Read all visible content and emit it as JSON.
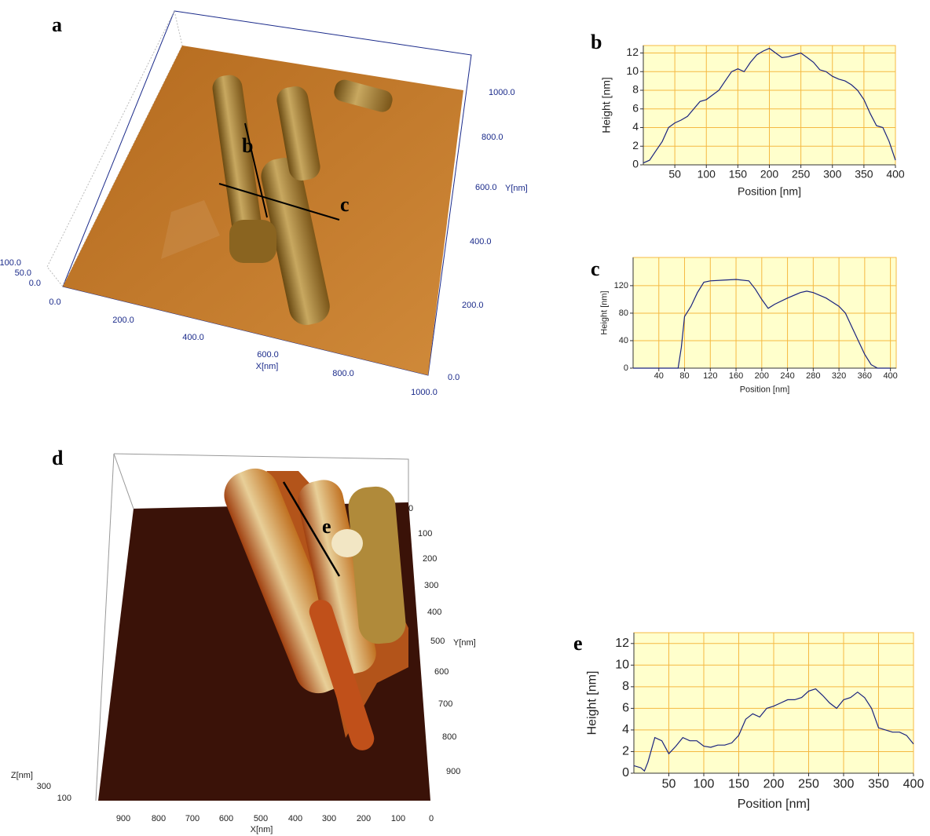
{
  "images": [
    {
      "label": "a",
      "line_labels": [
        "b",
        "c"
      ],
      "x_axis": "X[nm]",
      "y_axis": "Y[nm]",
      "x_ticks": [
        "0.0",
        "200.0",
        "400.0",
        "600.0",
        "800.0",
        "1000.0"
      ],
      "y_ticks": [
        "0.0",
        "200.0",
        "400.0",
        "600.0",
        "800.0",
        "1000.0"
      ],
      "z_ticks": [
        "100.0",
        "50.0",
        "0.0"
      ]
    },
    {
      "label": "d",
      "line_labels": [
        "e"
      ],
      "x_axis": "X[nm]",
      "y_axis": "Y[nm]",
      "z_axis": "Z[nm]",
      "x_ticks": [
        900,
        800,
        700,
        600,
        500,
        400,
        300,
        200,
        100,
        0
      ],
      "y_ticks": [
        0,
        100,
        200,
        300,
        400,
        500,
        600,
        700,
        800,
        900
      ],
      "z_ticks": [
        300,
        100
      ]
    }
  ],
  "chart_data": [
    {
      "type": "line",
      "label": "b",
      "xlabel": "Position [nm]",
      "ylabel": "Height [nm]",
      "x": [
        0,
        10,
        20,
        30,
        40,
        50,
        60,
        70,
        80,
        90,
        100,
        110,
        120,
        130,
        140,
        150,
        160,
        170,
        180,
        190,
        200,
        210,
        220,
        230,
        240,
        250,
        260,
        270,
        280,
        290,
        300,
        310,
        320,
        330,
        340,
        350,
        360,
        370,
        380,
        390,
        400
      ],
      "series": [
        {
          "color": "#1a237e",
          "values": [
            0.2,
            0.5,
            1.5,
            2.5,
            4,
            4.5,
            4.8,
            5.2,
            6,
            6.8,
            7,
            7.5,
            8,
            9,
            10,
            10.3,
            10,
            11,
            11.8,
            12.2,
            12.5,
            12,
            11.5,
            11.6,
            11.8,
            12,
            11.5,
            11,
            10.2,
            10,
            9.5,
            9.2,
            9,
            8.6,
            8,
            7,
            5.5,
            4.2,
            4,
            2.5,
            0.5
          ]
        }
      ],
      "xlim": [
        0,
        400
      ],
      "ylim": [
        0,
        12.8
      ],
      "xticks": [
        50,
        100,
        150,
        200,
        250,
        300,
        350,
        400
      ],
      "yticks": [
        0,
        2,
        4,
        6,
        8,
        10,
        12
      ],
      "grid": true,
      "plot_color": "#ffffcc",
      "grid_color": "#f5b942"
    },
    {
      "type": "line",
      "label": "c",
      "xlabel": "Position [nm]",
      "ylabel": "Height [nm]",
      "x": [
        0,
        20,
        40,
        60,
        70,
        75,
        80,
        90,
        100,
        110,
        120,
        140,
        160,
        180,
        190,
        200,
        210,
        220,
        240,
        260,
        270,
        280,
        300,
        320,
        330,
        340,
        350,
        360,
        370,
        380,
        400
      ],
      "series": [
        {
          "color": "#1a237e",
          "values": [
            0,
            0,
            0,
            0,
            0,
            30,
            75,
            90,
            110,
            125,
            127,
            128,
            129,
            127,
            115,
            100,
            87,
            93,
            102,
            110,
            112,
            110,
            102,
            90,
            80,
            60,
            40,
            20,
            5,
            0,
            0
          ]
        }
      ],
      "xlim": [
        0,
        409
      ],
      "ylim": [
        0,
        161
      ],
      "xticks": [
        40,
        80,
        120,
        160,
        200,
        240,
        280,
        320,
        360,
        400
      ],
      "yticks": [
        0,
        40,
        80,
        120
      ],
      "grid": true,
      "plot_color": "#ffffcc",
      "grid_color": "#f5b942"
    },
    {
      "type": "line",
      "label": "e",
      "xlabel": "Position [nm]",
      "ylabel": "Height [nm]",
      "x": [
        0,
        10,
        15,
        20,
        30,
        40,
        50,
        60,
        70,
        80,
        90,
        100,
        110,
        120,
        130,
        140,
        150,
        160,
        170,
        180,
        190,
        200,
        210,
        220,
        230,
        240,
        250,
        260,
        270,
        280,
        290,
        300,
        310,
        320,
        330,
        340,
        350,
        360,
        370,
        380,
        390,
        400
      ],
      "series": [
        {
          "color": "#1a237e",
          "values": [
            0.7,
            0.5,
            0.2,
            1,
            3.3,
            3,
            1.8,
            2.5,
            3.3,
            3,
            3,
            2.5,
            2.4,
            2.6,
            2.6,
            2.8,
            3.5,
            5,
            5.5,
            5.2,
            6,
            6.2,
            6.5,
            6.8,
            6.8,
            7,
            7.6,
            7.8,
            7.2,
            6.5,
            6,
            6.8,
            7,
            7.5,
            7,
            6,
            4.2,
            4,
            3.8,
            3.8,
            3.5,
            2.7
          ]
        }
      ],
      "xlim": [
        0,
        400
      ],
      "ylim": [
        0,
        13
      ],
      "xticks": [
        50,
        100,
        150,
        200,
        250,
        300,
        350,
        400
      ],
      "yticks": [
        0,
        2,
        4,
        6,
        8,
        10,
        12
      ],
      "grid": true,
      "plot_color": "#ffffcc",
      "grid_color": "#f5b942"
    }
  ]
}
